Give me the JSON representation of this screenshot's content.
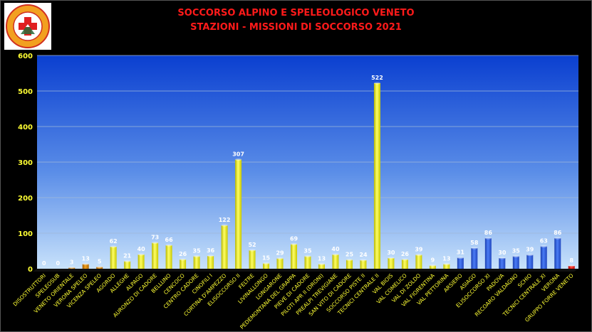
{
  "title": "SOCCORSO ALPINO E SPELEOLOGICO  VENETO",
  "subtitle": "STAZIONI -  MISSIONI DI SOCCORSO 2021",
  "logo": {
    "ring_text": "SOCCORSO ALPINO E SPELEOLOGICO",
    "inner_text": "CORPO NAZIONALE SOCCORSO ALPINO",
    "bottom_text": "VENETO"
  },
  "colors": {
    "background": "#000000",
    "title": "#ff1a1a",
    "axis_text": "#ffff33",
    "value_labels": "#ffffff",
    "yellow": "#ffff33",
    "orange": "#e08a00",
    "blue": "#3366ee",
    "red": "#ff2222",
    "plot_top": "#0a3fd0",
    "plot_bottom": "#b8d8f8"
  },
  "chart_data": {
    "type": "bar",
    "ylim": [
      0,
      600
    ],
    "yticks": [
      0,
      100,
      200,
      300,
      400,
      500,
      600
    ],
    "grid": true,
    "categories": [
      "DISOSTRUTTORI",
      "SPELEOSUB",
      "VENETO ORIENTALE",
      "VERONA SPELEO",
      "VICENZA SPELEO",
      "AGORDO",
      "ALLEGHE",
      "ALPAGO",
      "AURONZO DI CADORE",
      "BELLUNO",
      "CENCOCO",
      "CENTRO CADORE",
      "CINOFILI I",
      "CORTINA D'AMPEZZO",
      "ELISOCCORSO II",
      "FELTRE",
      "LIVINALLONGO",
      "LONGARONE",
      "PEDEMONTANA DEL GRAPPA",
      "PIEVE DI CADORE",
      "PILOTI APR II (DRONI)",
      "PREALPI TREVIGIANE",
      "SAN VITO DI CADORE",
      "SOCCORSO PISTE II",
      "TECNICI CENTRALE II",
      "VAL BIOIS",
      "VAL COMELICO",
      "VAL DI ZOLDO",
      "VAL FIORENTINA",
      "VAL PETTORINA",
      "ARSIERO",
      "ASIAGO",
      "ELISOCCORSO XI",
      "PADOVA",
      "RECOARO VALDAGNO",
      "SCHIO",
      "TECNICI CENTRALE XI",
      "VERONA",
      "GRUPPO FORRE VENETO"
    ],
    "values": [
      0,
      0,
      3,
      13,
      5,
      62,
      21,
      40,
      73,
      66,
      26,
      35,
      36,
      122,
      307,
      52,
      15,
      29,
      69,
      35,
      13,
      40,
      25,
      24,
      522,
      30,
      26,
      39,
      9,
      13,
      31,
      58,
      86,
      30,
      35,
      39,
      63,
      86,
      8
    ],
    "colors": [
      "orange",
      "orange",
      "orange",
      "orange",
      "orange",
      "yellow",
      "yellow",
      "yellow",
      "yellow",
      "yellow",
      "yellow",
      "yellow",
      "yellow",
      "yellow",
      "yellow",
      "yellow",
      "yellow",
      "yellow",
      "yellow",
      "yellow",
      "yellow",
      "yellow",
      "yellow",
      "yellow",
      "yellow",
      "yellow",
      "yellow",
      "yellow",
      "yellow",
      "yellow",
      "blue",
      "blue",
      "blue",
      "blue",
      "blue",
      "blue",
      "blue",
      "blue",
      "red"
    ]
  }
}
